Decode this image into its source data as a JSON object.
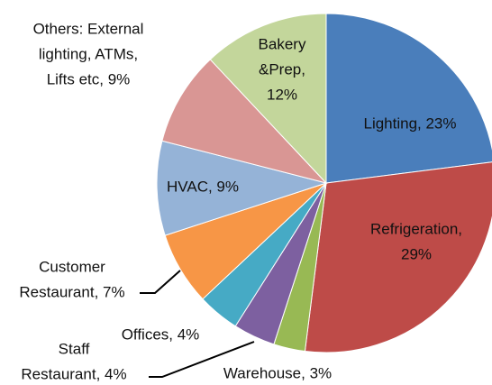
{
  "chart_data": {
    "type": "pie",
    "labels": [
      [
        "Lighting, 23%"
      ],
      [
        "Refrigeration,",
        "29%"
      ],
      [
        "Warehouse, 3%"
      ],
      [
        "Staff",
        "Restaurant, 4%"
      ],
      [
        "Offices, 4%"
      ],
      [
        "Customer",
        "Restaurant, 7%"
      ],
      [
        "HVAC, 9%"
      ],
      [
        "Others: External",
        "lighting, ATMs,",
        "Lifts etc, 9%"
      ],
      [
        "Bakery",
        "&Prep,",
        "12%"
      ]
    ],
    "values": [
      23,
      29,
      3,
      4,
      4,
      7,
      9,
      9,
      12
    ],
    "colors": [
      "#4a7ebb",
      "#be4b48",
      "#98b954",
      "#7d60a0",
      "#46aac5",
      "#f79646",
      "#95b3d7",
      "#d99694",
      "#c3d69b"
    ]
  }
}
